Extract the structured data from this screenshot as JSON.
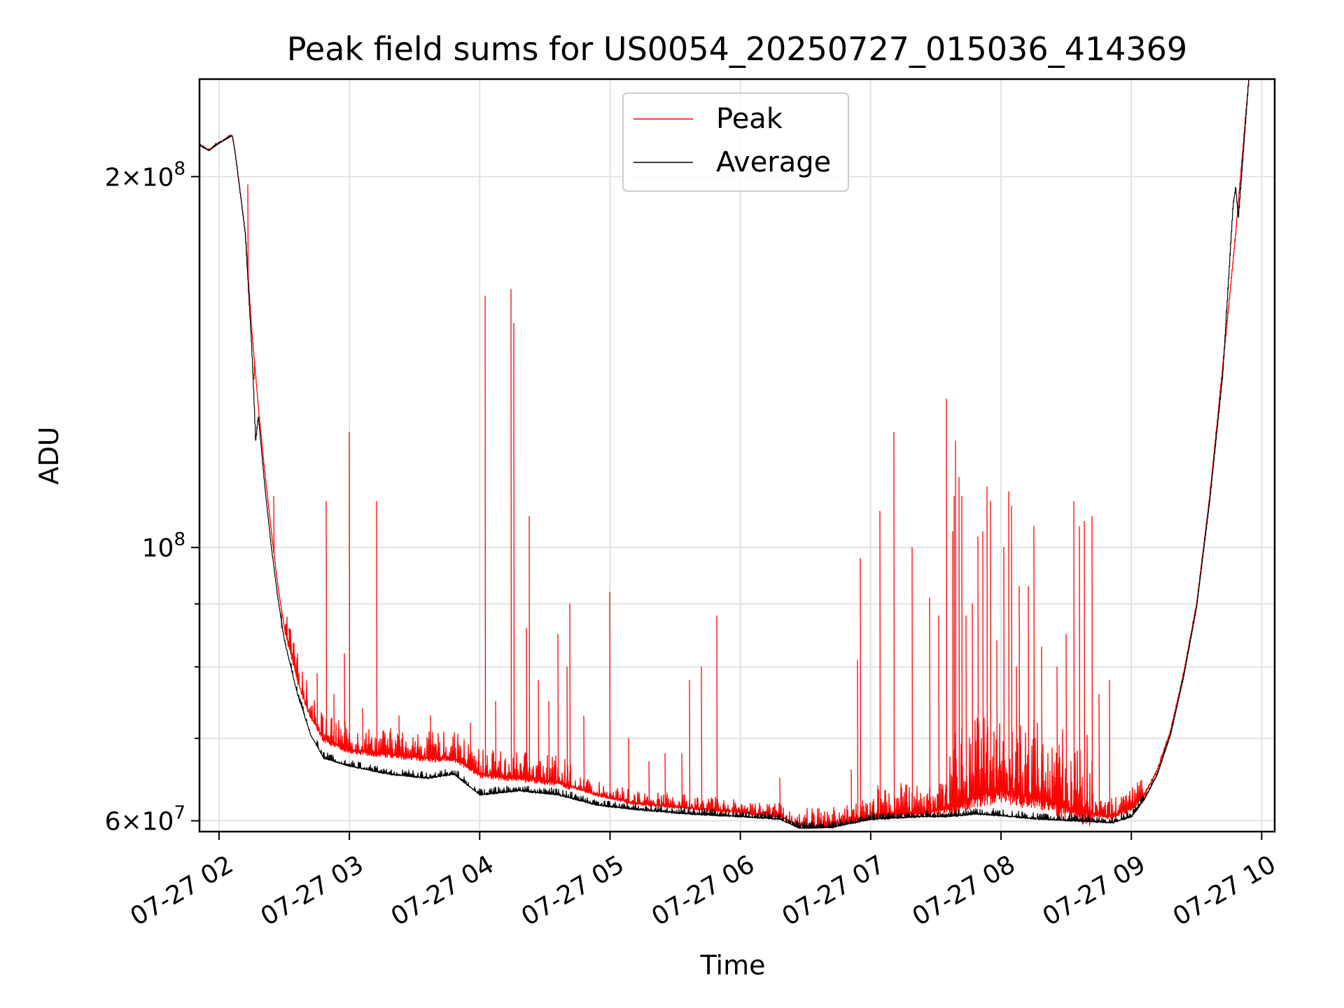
{
  "chart_data": {
    "type": "line",
    "title": "Peak field sums for US0054_20250727_015036_414369",
    "xlabel": "Time",
    "ylabel": "ADU",
    "x_unit": "hours",
    "xlim": [
      1.85,
      10.1
    ],
    "ylim": [
      58800000.0,
      240000000.0
    ],
    "yscale": "log",
    "grid": true,
    "legend_position": "top-center",
    "x_ticks": [
      {
        "value": 2,
        "label": "07-27 02"
      },
      {
        "value": 3,
        "label": "07-27 03"
      },
      {
        "value": 4,
        "label": "07-27 04"
      },
      {
        "value": 5,
        "label": "07-27 05"
      },
      {
        "value": 6,
        "label": "07-27 06"
      },
      {
        "value": 7,
        "label": "07-27 07"
      },
      {
        "value": 8,
        "label": "07-27 08"
      },
      {
        "value": 9,
        "label": "07-27 09"
      },
      {
        "value": 10,
        "label": "07-27 10"
      }
    ],
    "y_major_ticks": [
      {
        "value": 60000000,
        "mant": "6",
        "exp": "7"
      },
      {
        "value": 100000000,
        "mant": "",
        "exp": "8"
      },
      {
        "value": 200000000,
        "mant": "2",
        "exp": "8"
      }
    ],
    "y_minor_ticks": [
      70000000,
      80000000,
      90000000
    ],
    "series": [
      {
        "name": "Peak",
        "color": "#ff0000",
        "baseline": [
          [
            1.85,
            212000000.0
          ],
          [
            1.92,
            210000000.0
          ],
          [
            2.0,
            213000000.0
          ],
          [
            2.1,
            216000000.0
          ],
          [
            2.12,
            210000000.0
          ],
          [
            2.2,
            180000000.0
          ],
          [
            2.25,
            150000000.0
          ],
          [
            2.3,
            130000000.0
          ],
          [
            2.35,
            115000000.0
          ],
          [
            2.4,
            103000000.0
          ],
          [
            2.45,
            93000000.0
          ],
          [
            2.5,
            86000000.0
          ],
          [
            2.6,
            78000000.0
          ],
          [
            2.7,
            73000000.0
          ],
          [
            2.8,
            70000000.0
          ],
          [
            3.0,
            68500000.0
          ],
          [
            3.3,
            68000000.0
          ],
          [
            3.6,
            67500000.0
          ],
          [
            3.8,
            67500000.0
          ],
          [
            4.0,
            65500000.0
          ],
          [
            4.3,
            65000000.0
          ],
          [
            4.6,
            64500000.0
          ],
          [
            4.9,
            63000000.0
          ],
          [
            5.2,
            62000000.0
          ],
          [
            5.6,
            61500000.0
          ],
          [
            6.0,
            61000000.0
          ],
          [
            6.3,
            60500000.0
          ],
          [
            6.45,
            59500000.0
          ],
          [
            6.7,
            59500000.0
          ],
          [
            7.0,
            60500000.0
          ],
          [
            7.4,
            61000000.0
          ],
          [
            7.6,
            61500000.0
          ],
          [
            7.8,
            63000000.0
          ],
          [
            8.0,
            63500000.0
          ],
          [
            8.3,
            62500000.0
          ],
          [
            8.6,
            61000000.0
          ],
          [
            8.85,
            60500000.0
          ],
          [
            9.0,
            61500000.0
          ],
          [
            9.1,
            63000000.0
          ],
          [
            9.2,
            66000000.0
          ],
          [
            9.3,
            71000000.0
          ],
          [
            9.4,
            79000000.0
          ],
          [
            9.5,
            90000000.0
          ],
          [
            9.6,
            110000000.0
          ],
          [
            9.7,
            140000000.0
          ],
          [
            9.8,
            180000000.0
          ],
          [
            9.9,
            240000000.0
          ]
        ],
        "noise_bands": [
          [
            2.5,
            4.7,
            0.05
          ],
          [
            4.7,
            6.45,
            0.025
          ],
          [
            6.45,
            7.05,
            0.035
          ],
          [
            7.05,
            7.6,
            0.06
          ],
          [
            7.6,
            8.7,
            0.16
          ],
          [
            8.7,
            9.1,
            0.04
          ]
        ],
        "spikes": [
          [
            2.22,
            197000000.0
          ],
          [
            2.27,
            137000000.0
          ],
          [
            2.42,
            110000000.0
          ],
          [
            2.48,
            86000000.0
          ],
          [
            2.54,
            86000000.0
          ],
          [
            2.6,
            82000000.0
          ],
          [
            2.75,
            79000000.0
          ],
          [
            2.82,
            109000000.0
          ],
          [
            2.88,
            76000000.0
          ],
          [
            2.96,
            82000000.0
          ],
          [
            3.0,
            124000000.0
          ],
          [
            3.1,
            74000000.0
          ],
          [
            3.21,
            109000000.0
          ],
          [
            3.38,
            73000000.0
          ],
          [
            3.62,
            73000000.0
          ],
          [
            3.93,
            72000000.0
          ],
          [
            4.04,
            160000000.0
          ],
          [
            4.12,
            75000000.0
          ],
          [
            4.24,
            162000000.0
          ],
          [
            4.26,
            152000000.0
          ],
          [
            4.36,
            86000000.0
          ],
          [
            4.38,
            106000000.0
          ],
          [
            4.45,
            78000000.0
          ],
          [
            4.53,
            75000000.0
          ],
          [
            4.6,
            85000000.0
          ],
          [
            4.67,
            80000000.0
          ],
          [
            4.69,
            90000000.0
          ],
          [
            4.8,
            73000000.0
          ],
          [
            5.0,
            92000000.0
          ],
          [
            5.14,
            70000000.0
          ],
          [
            5.3,
            67000000.0
          ],
          [
            5.42,
            68000000.0
          ],
          [
            5.55,
            68000000.0
          ],
          [
            5.61,
            78000000.0
          ],
          [
            5.7,
            80000000.0
          ],
          [
            5.82,
            88000000.0
          ],
          [
            6.3,
            65000000.0
          ],
          [
            6.85,
            66000000.0
          ],
          [
            6.9,
            81000000.0
          ],
          [
            6.92,
            98000000.0
          ],
          [
            7.07,
            107000000.0
          ],
          [
            7.18,
            124000000.0
          ],
          [
            7.32,
            100000000.0
          ],
          [
            7.45,
            91000000.0
          ],
          [
            7.52,
            88000000.0
          ],
          [
            7.58,
            132000000.0
          ],
          [
            7.63,
            103000000.0
          ],
          [
            7.64,
            110000000.0
          ],
          [
            7.65,
            122000000.0
          ],
          [
            7.68,
            114000000.0
          ],
          [
            7.7,
            110000000.0
          ],
          [
            7.73,
            88000000.0
          ],
          [
            7.78,
            90000000.0
          ],
          [
            7.82,
            102000000.0
          ],
          [
            7.86,
            103000000.0
          ],
          [
            7.89,
            112000000.0
          ],
          [
            7.92,
            109000000.0
          ],
          [
            7.97,
            84000000.0
          ],
          [
            8.02,
            100000000.0
          ],
          [
            8.06,
            111000000.0
          ],
          [
            8.08,
            108000000.0
          ],
          [
            8.12,
            80000000.0
          ],
          [
            8.14,
            93000000.0
          ],
          [
            8.21,
            93000000.0
          ],
          [
            8.25,
            104000000.0
          ],
          [
            8.31,
            83000000.0
          ],
          [
            8.43,
            80000000.0
          ],
          [
            8.5,
            85000000.0
          ],
          [
            8.56,
            109000000.0
          ],
          [
            8.6,
            104000000.0
          ],
          [
            8.64,
            105000000.0
          ],
          [
            8.7,
            106000000.0
          ],
          [
            8.75,
            76000000.0
          ],
          [
            8.83,
            78000000.0
          ]
        ]
      },
      {
        "name": "Average",
        "color": "#000000",
        "baseline": [
          [
            1.85,
            212000000.0
          ],
          [
            1.92,
            210000000.0
          ],
          [
            2.0,
            213000000.0
          ],
          [
            2.1,
            216000000.0
          ],
          [
            2.12,
            210000000.0
          ],
          [
            2.2,
            180000000.0
          ],
          [
            2.25,
            145000000.0
          ],
          [
            2.28,
            122000000.0
          ],
          [
            2.3,
            128000000.0
          ],
          [
            2.35,
            112000000.0
          ],
          [
            2.4,
            100000000.0
          ],
          [
            2.45,
            91000000.0
          ],
          [
            2.5,
            84000000.0
          ],
          [
            2.6,
            76000000.0
          ],
          [
            2.7,
            70500000.0
          ],
          [
            2.8,
            67500000.0
          ],
          [
            3.0,
            66500000.0
          ],
          [
            3.3,
            65500000.0
          ],
          [
            3.6,
            65000000.0
          ],
          [
            3.8,
            65500000.0
          ],
          [
            4.0,
            63000000.0
          ],
          [
            4.3,
            63500000.0
          ],
          [
            4.6,
            63000000.0
          ],
          [
            4.9,
            61800000.0
          ],
          [
            5.2,
            61300000.0
          ],
          [
            5.6,
            60800000.0
          ],
          [
            6.0,
            60500000.0
          ],
          [
            6.3,
            60200000.0
          ],
          [
            6.45,
            59200000.0
          ],
          [
            6.7,
            59300000.0
          ],
          [
            7.0,
            60200000.0
          ],
          [
            7.4,
            60500000.0
          ],
          [
            7.6,
            60500000.0
          ],
          [
            7.8,
            60800000.0
          ],
          [
            8.0,
            60600000.0
          ],
          [
            8.3,
            60200000.0
          ],
          [
            8.6,
            60000000.0
          ],
          [
            8.85,
            59800000.0
          ],
          [
            9.0,
            60500000.0
          ],
          [
            9.1,
            62500000.0
          ],
          [
            9.2,
            65500000.0
          ],
          [
            9.3,
            70500000.0
          ],
          [
            9.4,
            78500000.0
          ],
          [
            9.5,
            89500000.0
          ],
          [
            9.6,
            109000000.0
          ],
          [
            9.7,
            138000000.0
          ],
          [
            9.78,
            190000000.0
          ],
          [
            9.8,
            196000000.0
          ],
          [
            9.82,
            185000000.0
          ],
          [
            9.9,
            240000000.0
          ]
        ],
        "noise_bands": [
          [
            2.5,
            9.1,
            0.012
          ]
        ],
        "spikes": []
      }
    ]
  }
}
